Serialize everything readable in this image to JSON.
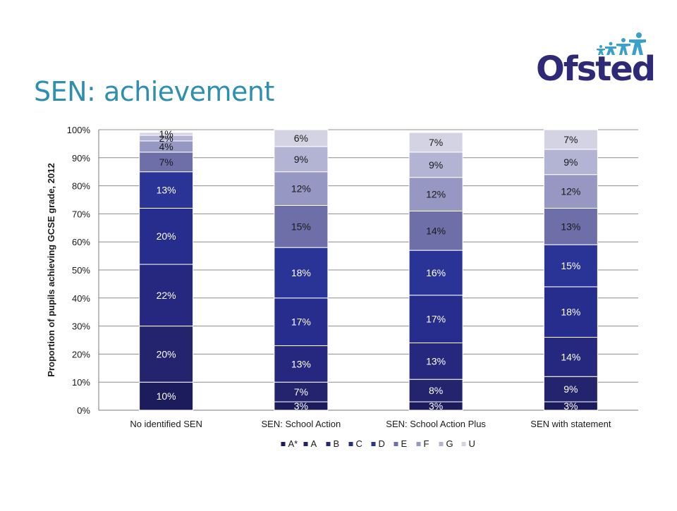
{
  "slide": {
    "title": "SEN: achievement"
  },
  "logo": {
    "text": "Ofsted",
    "colors": {
      "text": "#2e2a78",
      "figures": "#3aa0c8"
    }
  },
  "chart_data": {
    "type": "bar",
    "stacked": true,
    "ylabel": "Proportion of pupils achieving GCSE grade, 2012",
    "xlabel": "",
    "ylim": [
      0,
      100
    ],
    "yticks": [
      "0%",
      "10%",
      "20%",
      "30%",
      "40%",
      "50%",
      "60%",
      "70%",
      "80%",
      "90%",
      "100%"
    ],
    "grid": true,
    "legend_position": "bottom",
    "categories": [
      "No identified SEN",
      "SEN: School Action",
      "SEN: School Action Plus",
      "SEN with statement"
    ],
    "series": [
      {
        "name": "A*",
        "color": "#1c1c5c",
        "values": [
          10,
          3,
          3,
          3
        ],
        "labels": [
          "10%",
          "3%",
          "3%",
          "3%"
        ]
      },
      {
        "name": "A",
        "color": "#24246e",
        "values": [
          20,
          7,
          8,
          9
        ],
        "labels": [
          "20%",
          "7%",
          "8%",
          "9%"
        ]
      },
      {
        "name": "B",
        "color": "#262880",
        "values": [
          22,
          13,
          13,
          14
        ],
        "labels": [
          "22%",
          "13%",
          "13%",
          "14%"
        ]
      },
      {
        "name": "C",
        "color": "#272d8c",
        "values": [
          20,
          17,
          17,
          18
        ],
        "labels": [
          "20%",
          "17%",
          "17%",
          "18%"
        ]
      },
      {
        "name": "D",
        "color": "#2a3396",
        "values": [
          13,
          18,
          16,
          15
        ],
        "labels": [
          "13%",
          "18%",
          "16%",
          "15%"
        ]
      },
      {
        "name": "E",
        "color": "#6e6fa8",
        "values": [
          7,
          15,
          14,
          13
        ],
        "labels": [
          "7%",
          "15%",
          "14%",
          "13%"
        ]
      },
      {
        "name": "F",
        "color": "#9697c2",
        "values": [
          4,
          12,
          12,
          12
        ],
        "labels": [
          "4%",
          "12%",
          "12%",
          "12%"
        ]
      },
      {
        "name": "G",
        "color": "#b3b4d4",
        "values": [
          2,
          9,
          9,
          9
        ],
        "labels": [
          "2%",
          "9%",
          "9%",
          "9%"
        ]
      },
      {
        "name": "U",
        "color": "#d3d3e3",
        "values": [
          1,
          6,
          7,
          7
        ],
        "labels": [
          "1%",
          "6%",
          "7%",
          "7%"
        ]
      }
    ]
  }
}
